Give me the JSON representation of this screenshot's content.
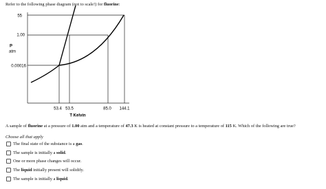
{
  "prompt": [
    "Refer to the following phase diagram (not to scale!) for ",
    "fluorine",
    ":"
  ],
  "diagram": {
    "y_labels": [
      "55",
      "1.00",
      "0.00016"
    ],
    "y_axis_label": [
      "P",
      "atm"
    ],
    "x_labels": [
      "53.4",
      "53.5",
      "85.0",
      "144.1"
    ],
    "x_axis_label": "T Kelvin"
  },
  "question": [
    "A sample of ",
    "fluorine",
    " at a pressure of ",
    "1.00",
    " atm and a temperature of ",
    "47.3",
    " K is heated at constant pressure to a temperature of ",
    "115",
    " K. Which of the following are true?"
  ],
  "instruction": "Choose all that apply",
  "options": [
    [
      "The final state of the substance is a ",
      "gas",
      "."
    ],
    [
      "The sample is initially a ",
      "solid",
      "."
    ],
    [
      "One or more phase changes will occur."
    ],
    [
      "The ",
      "liquid",
      " initially present will solidify."
    ],
    [
      "The sample is initially a ",
      "liquid",
      "."
    ]
  ]
}
